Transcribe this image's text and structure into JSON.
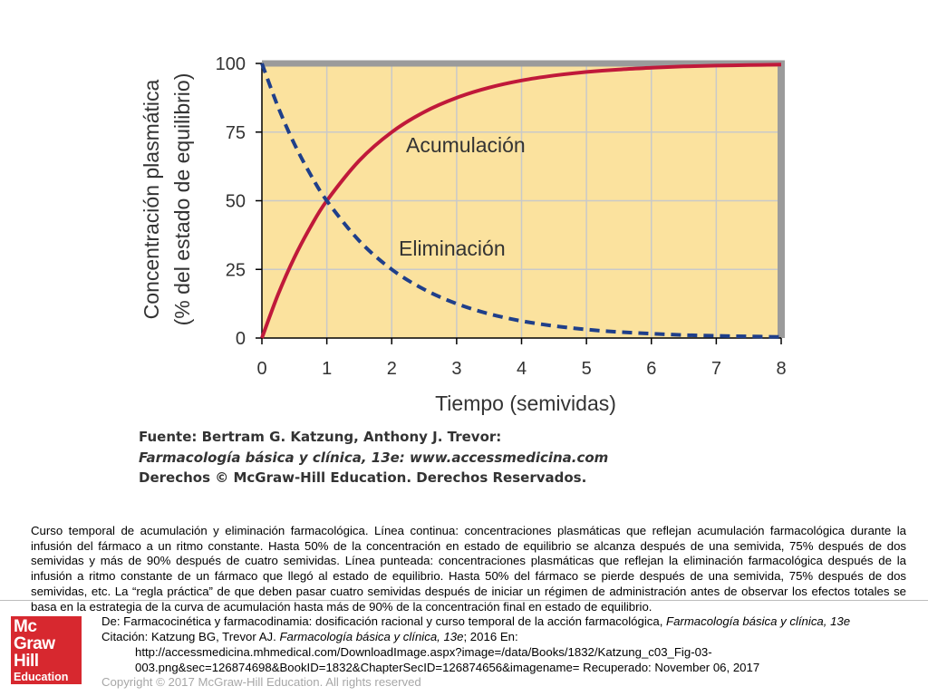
{
  "chart_data": {
    "type": "line",
    "xlabel": "Tiempo (semividas)",
    "ylabel_line1": "Concentración plasmática",
    "ylabel_line2": "(% del estado de equilibrio)",
    "xlim": [
      0,
      8
    ],
    "ylim": [
      0,
      100
    ],
    "x_ticks": [
      "0",
      "1",
      "2",
      "3",
      "4",
      "5",
      "6",
      "7",
      "8"
    ],
    "y_ticks": [
      "0",
      "25",
      "50",
      "75",
      "100"
    ],
    "grid": true,
    "x": [
      0,
      0.25,
      0.5,
      0.75,
      1,
      1.5,
      2,
      2.5,
      3,
      3.5,
      4,
      4.5,
      5,
      5.5,
      6,
      6.5,
      7,
      7.5,
      8
    ],
    "series": [
      {
        "name": "Acumulación",
        "style": "solid",
        "color": "#c0193a",
        "values": [
          0,
          15.9,
          29.3,
          40.5,
          50.0,
          64.6,
          75.0,
          82.3,
          87.5,
          91.2,
          93.8,
          95.6,
          96.9,
          97.8,
          98.4,
          98.9,
          99.2,
          99.4,
          99.6
        ]
      },
      {
        "name": "Eliminación",
        "style": "dashed",
        "color": "#1f3f8a",
        "values": [
          100,
          84.1,
          70.7,
          59.5,
          50.0,
          35.4,
          25.0,
          17.7,
          12.5,
          8.8,
          6.2,
          4.4,
          3.1,
          2.2,
          1.6,
          1.1,
          0.8,
          0.6,
          0.4
        ]
      }
    ],
    "source_lines": [
      "Fuente: Bertram G. Katzung, Anthony J. Trevor:",
      "Farmacología básica y clínica, 13e: www.accessmedicina.com",
      "Derechos © McGraw-Hill Education. Derechos Reservados."
    ],
    "colors": {
      "plot_background": "#fbe29e",
      "grid": "#c9c9c9",
      "frame": "#9b9b9b"
    }
  },
  "caption": "Curso temporal de acumulación y eliminación farmacológica. Línea continua: concentraciones plasmáticas que reflejan acumulación farmacológica durante la infusión del fármaco a un ritmo constante. Hasta 50% de la concentración en estado de equilibrio se alcanza después de una semivida, 75% después de dos semividas y más de 90% después de cuatro semividas. Línea punteada: concentraciones plasmáticas que reflejan la eliminación farmacológica después de la infusión a ritmo constante de un fármaco que llegó al estado de equilibrio. Hasta 50% del fármaco se pierde después de una semivida, 75% después de dos semividas, etc. La “regla práctica” de que deben pasar cuatro semividas después de iniciar un régimen de administración antes de observar los efectos totales se basa en la estrategia de la curva de acumulación hasta más de 90% de la concentración final en estado de equilibrio.",
  "logo": {
    "line1": "Mc",
    "line2": "Graw",
    "line3": "Hill",
    "line4": "Education",
    "color": "#d7282f"
  },
  "citation": {
    "de_prefix": "De: Farmacocinética y farmacodinamia: dosificación racional y curso temporal de la acción farmacológica, ",
    "de_book": "Farmacología básica y clínica, 13e",
    "cita_prefix": "Citación: Katzung BG, Trevor AJ. ",
    "cita_book": "Farmacología básica y clínica, 13e",
    "cita_suffix": "; 2016 En:",
    "url_line1": "http://accessmedicina.mhmedical.com/DownloadImage.aspx?image=/data/Books/1832/Katzung_c03_Fig-03-",
    "url_line2": "003.png&sec=126874698&BookID=1832&ChapterSecID=126874656&imagename= Recuperado: November 06, 2017"
  },
  "copyright": "Copyright © 2017 McGraw-Hill Education. All rights reserved"
}
